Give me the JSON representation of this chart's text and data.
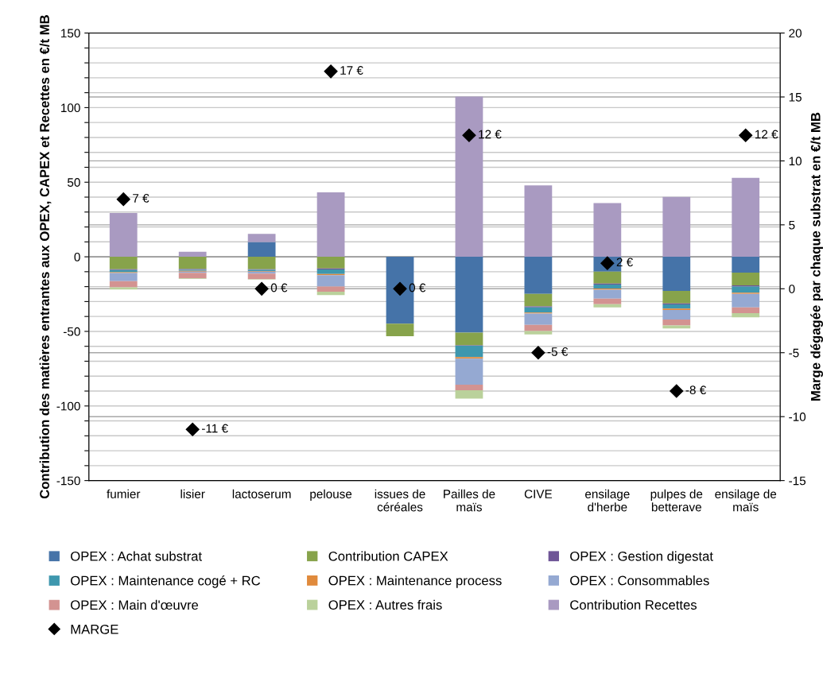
{
  "chart_data": {
    "type": "bar",
    "stacked": true,
    "categories": [
      "fumier",
      "lisier",
      "lactoserum",
      "pelouse",
      "issues de\ncéréales",
      "Pailles de\nmaïs",
      "CIVE",
      "ensilage\nd'herbe",
      "pulpes de\nbetterave",
      "ensilage de\nmaïs"
    ],
    "ylabel": "Contribution des matières entrantes aux OPEX, CAPEX et Recettes en €/t MB",
    "y2label": "Marge dégagée par chaque substrat en €/t MB",
    "ylim": [
      -150,
      150
    ],
    "yticks": [
      -150,
      {
        "value": -140,
        "label": null
      },
      {
        "value": -130,
        "label": null
      },
      {
        "value": -120,
        "label": null
      },
      {
        "value": -110,
        "label": null
      },
      -100,
      {
        "value": -90,
        "label": null
      },
      {
        "value": -80,
        "label": null
      },
      {
        "value": -70,
        "label": null
      },
      {
        "value": -60,
        "label": null
      },
      -50,
      {
        "value": -40,
        "label": null
      },
      {
        "value": -30,
        "label": null
      },
      {
        "value": -20,
        "label": null
      },
      {
        "value": -10,
        "label": null
      },
      0,
      {
        "value": 10,
        "label": null
      },
      {
        "value": 20,
        "label": null
      },
      {
        "value": 30,
        "label": null
      },
      {
        "value": 40,
        "label": null
      },
      50,
      {
        "value": 60,
        "label": null
      },
      {
        "value": 70,
        "label": null
      },
      {
        "value": 80,
        "label": null
      },
      {
        "value": 90,
        "label": null
      },
      100,
      {
        "value": 110,
        "label": null
      },
      {
        "value": 120,
        "label": null
      },
      {
        "value": 130,
        "label": null
      },
      {
        "value": 140,
        "label": null
      },
      150
    ],
    "y2lim": [
      -15,
      20
    ],
    "y2ticks": [
      -15,
      -10,
      -5,
      0,
      5,
      10,
      15,
      20
    ],
    "grid": true,
    "legend": "bottom",
    "series": [
      {
        "name": "OPEX : Achat substrat",
        "color": "#4573a8",
        "values": [
          0,
          0,
          9.9,
          0,
          -44.8,
          -50.9,
          -24.8,
          -9.9,
          -22.9,
          -10.6
        ]
      },
      {
        "name": "Contribution CAPEX",
        "color": "#87a34b",
        "values": [
          -8.4,
          -8.2,
          -8.4,
          -7.8,
          -8.4,
          -8.4,
          -8.4,
          -8.0,
          -8.4,
          -8.6
        ]
      },
      {
        "name": "OPEX : Gestion digestat",
        "color": "#6f5597",
        "values": [
          -0.5,
          -0.5,
          -0.4,
          -0.7,
          0,
          -0.3,
          -0.7,
          -0.7,
          -0.6,
          -0.7
        ]
      },
      {
        "name": "OPEX : Maintenance cogé + RC",
        "color": "#3e97ae",
        "values": [
          -1.5,
          -0.7,
          -0.7,
          -3.0,
          0,
          -7.6,
          -3.5,
          -2.6,
          -2.8,
          -4.1
        ]
      },
      {
        "name": "OPEX : Maintenance process",
        "color": "#e08a3c",
        "values": [
          -0.5,
          -0.5,
          -0.5,
          -0.9,
          0,
          -1.1,
          -0.7,
          -0.9,
          -0.9,
          -0.9
        ]
      },
      {
        "name": "OPEX : Consommables",
        "color": "#95a9d2",
        "values": [
          -5.4,
          -0.9,
          -1.3,
          -7.5,
          0,
          -17.4,
          -7.6,
          -6.0,
          -6.5,
          -9.0
        ]
      },
      {
        "name": "OPEX : Main d'œuvre",
        "color": "#d39391",
        "values": [
          -4.1,
          -3.7,
          -3.7,
          -3.5,
          0,
          -3.7,
          -4.1,
          -3.7,
          -3.9,
          -3.9
        ]
      },
      {
        "name": "OPEX : Autres frais",
        "color": "#bad19b",
        "values": [
          -1.5,
          -0.4,
          -0.3,
          -2.2,
          0,
          -5.6,
          -2.2,
          -2.1,
          -2.1,
          -2.8
        ]
      },
      {
        "name": "Contribution Recettes",
        "color": "#a99ac1",
        "values": [
          29.4,
          3.4,
          5.4,
          43.2,
          0,
          107.4,
          47.9,
          36,
          40.1,
          52.9
        ]
      },
      {
        "name": "MARGE",
        "type": "scatter",
        "axis": "y2",
        "marker": "diamond",
        "color": "#000000",
        "values": [
          7,
          -11,
          0,
          17,
          0,
          12,
          -5,
          2,
          -8,
          12
        ],
        "value_labels": [
          "7 €",
          "-11 €",
          "0 €",
          "17 €",
          "0 €",
          "12 €",
          "-5 €",
          "2 €",
          "-8 €",
          "12 €"
        ]
      }
    ]
  }
}
